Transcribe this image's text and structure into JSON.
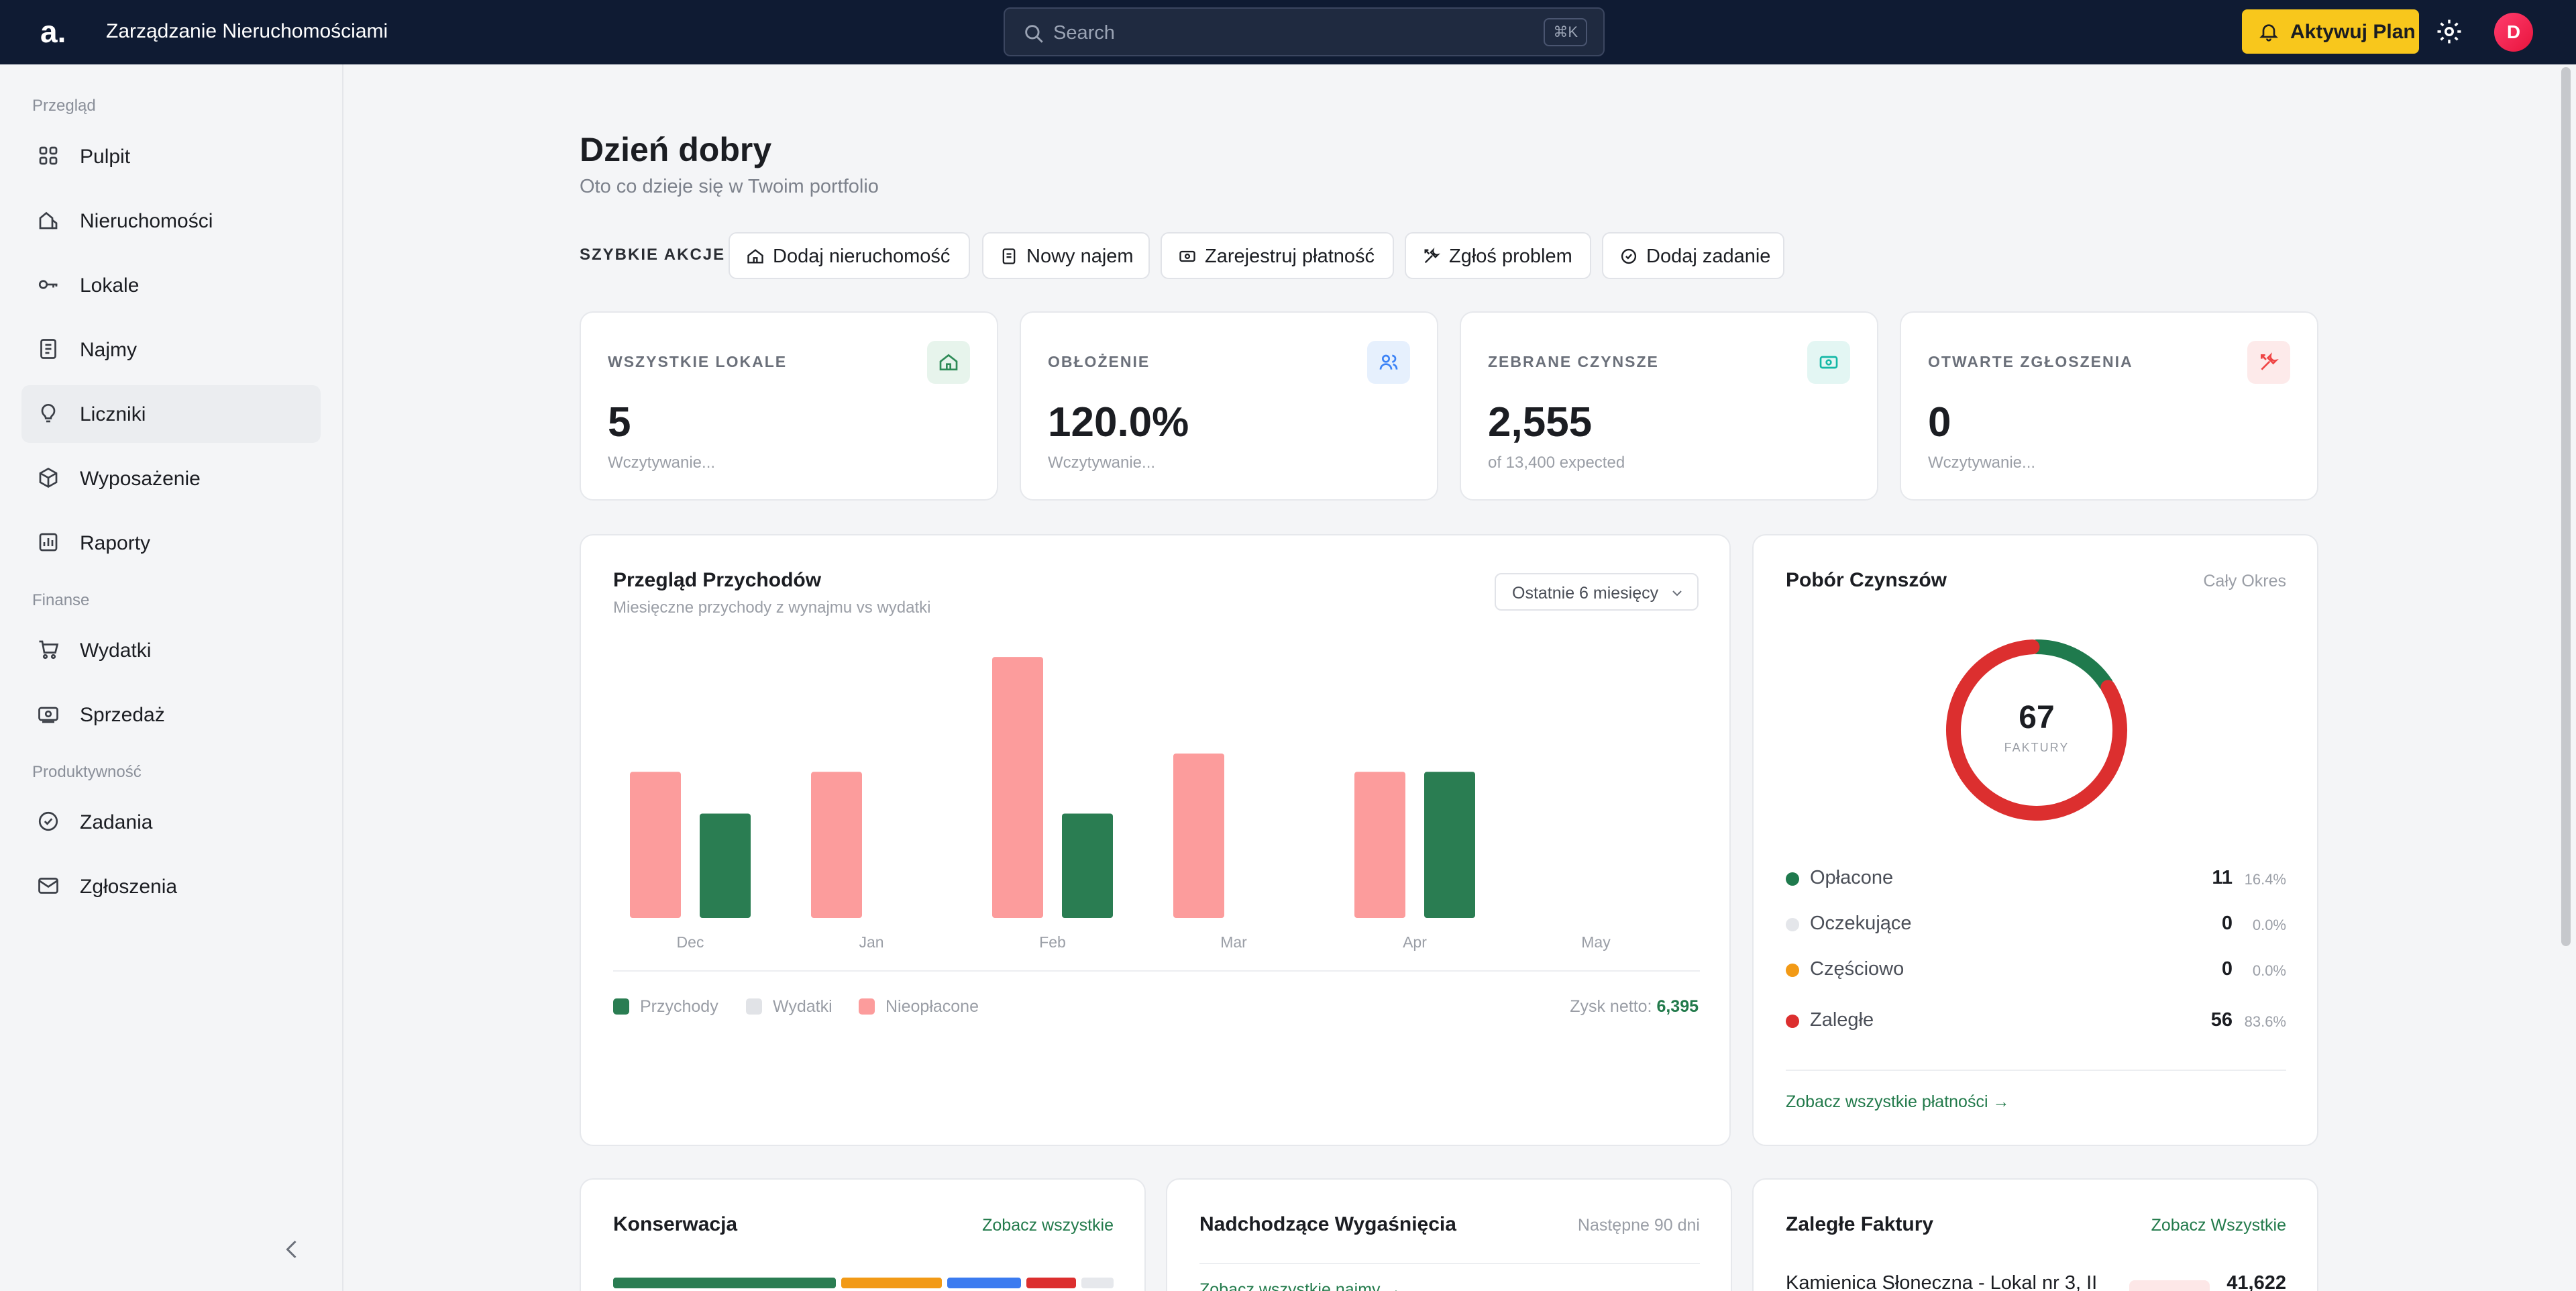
{
  "topbar": {
    "logo": "a.",
    "title": "Zarządzanie Nieruchomościami",
    "search_placeholder": "Search",
    "search_shortcut": "⌘K",
    "upgrade_label": "Aktywuj Plan",
    "avatar_initial": "D"
  },
  "sidebar": {
    "sections": [
      {
        "label": "Przegląd"
      },
      {
        "label": "Finanse"
      },
      {
        "label": "Produktywność"
      }
    ],
    "items": [
      {
        "label": "Pulpit"
      },
      {
        "label": "Nieruchomości"
      },
      {
        "label": "Lokale"
      },
      {
        "label": "Najmy"
      },
      {
        "label": "Liczniki"
      },
      {
        "label": "Wyposażenie"
      },
      {
        "label": "Raporty"
      },
      {
        "label": "Wydatki"
      },
      {
        "label": "Sprzedaż"
      },
      {
        "label": "Zadania"
      },
      {
        "label": "Zgłoszenia"
      }
    ],
    "active_item": "Liczniki"
  },
  "header": {
    "greeting": "Dzień dobry",
    "subtitle": "Oto co dzieje się w Twoim portfolio"
  },
  "quick_actions": {
    "label": "SZYBKIE AKCJE",
    "buttons": [
      {
        "label": "Dodaj nieruchomość",
        "icon": "home-icon"
      },
      {
        "label": "Nowy najem",
        "icon": "document-icon"
      },
      {
        "label": "Zarejestruj płatność",
        "icon": "cash-icon"
      },
      {
        "label": "Zgłoś problem",
        "icon": "wrench-icon"
      },
      {
        "label": "Dodaj zadanie",
        "icon": "check-circle-icon"
      }
    ]
  },
  "stats": [
    {
      "label": "WSZYSTKIE LOKALE",
      "value": "5",
      "sub": "Wczytywanie...",
      "icon": "home-icon",
      "color": "#2e8b57"
    },
    {
      "label": "OBŁOŻENIE",
      "value": "120.0%",
      "sub": "Wczytywanie...",
      "icon": "users-icon",
      "color": "#3b82f6"
    },
    {
      "label": "ZEBRANE CZYNSZE",
      "value": "2,555",
      "sub": "of 13,400 expected",
      "icon": "cash-icon",
      "color": "#14b8a6"
    },
    {
      "label": "OTWARTE ZGŁOSZENIA",
      "value": "0",
      "sub": "Wczytywanie...",
      "icon": "wrench-icon",
      "color": "#ef4444"
    }
  ],
  "revenue": {
    "title": "Przegląd Przychodów",
    "subtitle": "Miesięczne przychody z wynajmu vs wydatki",
    "range_label": "Ostatnie 6 miesięcy",
    "net_label": "Zysk netto:",
    "net_value": "6,395"
  },
  "chart_data": {
    "type": "bar",
    "categories": [
      "Dec",
      "Jan",
      "Feb",
      "Mar",
      "Apr",
      "May"
    ],
    "series": [
      {
        "name": "Przychody",
        "color": "#2a7d52",
        "values": [
          2000,
          0,
          2000,
          0,
          2800,
          0
        ]
      },
      {
        "name": "Wydatki",
        "color": "#e1e3e7",
        "values": [
          0,
          0,
          0,
          0,
          0,
          0
        ]
      },
      {
        "name": "Nieopłacone",
        "color": "#fc9c9c",
        "values": [
          2800,
          2800,
          5000,
          3150,
          2800,
          0
        ]
      }
    ],
    "ylim": [
      0,
      5400
    ],
    "grid": false,
    "legend": "bottom-left"
  },
  "collection": {
    "title": "Pobór Czynszów",
    "period": "Cały Okres",
    "total": "67",
    "total_label": "FAKTURY",
    "rows": [
      {
        "label": "Opłacone",
        "count": "11",
        "pct": "16.4%",
        "color": "#1f7a4d"
      },
      {
        "label": "Oczekujące",
        "count": "0",
        "pct": "0.0%",
        "color": "#e4e6ea"
      },
      {
        "label": "Częściowo",
        "count": "0",
        "pct": "0.0%",
        "color": "#f29a16"
      },
      {
        "label": "Zaległe",
        "count": "56",
        "pct": "83.6%",
        "color": "#dc2f2f"
      }
    ],
    "link": "Zobacz wszystkie płatności →"
  },
  "maintenance": {
    "title": "Konserwacja",
    "link": "Zobacz wszystkie",
    "bar_colors": [
      "#2a7d52",
      "#f29a16",
      "#3b7bf0",
      "#dc2f2f",
      "#e6e8ec"
    ]
  },
  "expiring": {
    "title": "Nadchodzące Wygaśnięcia",
    "period": "Następne 90 dni",
    "link": "Zobacz wszystkie najmy →"
  },
  "overdue": {
    "title": "Zaległe Faktury",
    "link": "Zobacz Wszystkie",
    "first_item": "Kamienica Słoneczna - Lokal nr 3, II",
    "first_amount": "41,622"
  }
}
